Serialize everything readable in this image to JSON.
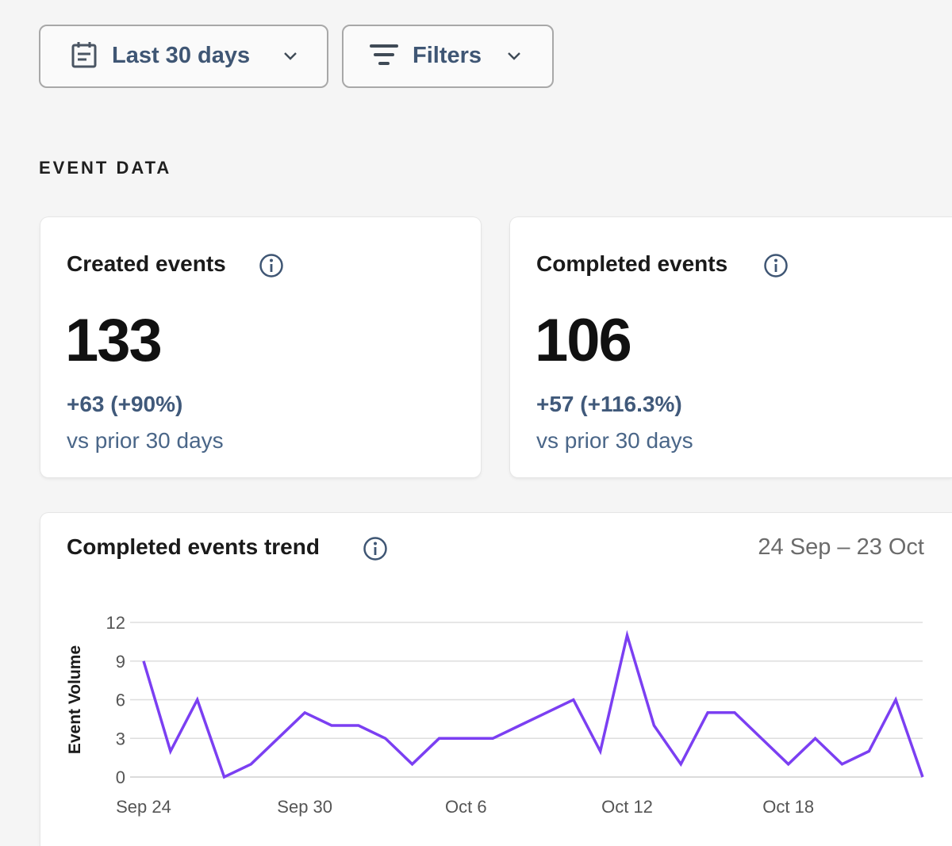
{
  "toolbar": {
    "date_label": "Last 30 days",
    "date_icon": "calendar-icon",
    "filters_label": "Filters",
    "filters_icon": "filter-icon"
  },
  "section": {
    "title": "EVENT DATA"
  },
  "cards": {
    "created": {
      "title": "Created events",
      "value": "133",
      "delta": "+63 (+90%)",
      "comparison": "vs prior 30 days"
    },
    "completed": {
      "title": "Completed events",
      "value": "106",
      "delta": "+57 (+116.3%)",
      "comparison": "vs prior 30 days"
    }
  },
  "trend": {
    "title": "Completed events trend",
    "date_range": "24 Sep – 23 Oct"
  },
  "colors": {
    "accent_line": "#7b3ff2",
    "delta_text": "#40597a",
    "button_text": "#3f5674"
  },
  "chart_data": {
    "type": "line",
    "title": "Completed events trend",
    "ylabel": "Event Volume",
    "xlabel": "",
    "ylim": [
      0,
      12
    ],
    "yticks": [
      0,
      3,
      6,
      9,
      12
    ],
    "xtick_labels": [
      "Sep 24",
      "Sep 30",
      "Oct 6",
      "Oct 12",
      "Oct 18"
    ],
    "xtick_indices": [
      0,
      6,
      12,
      18,
      24
    ],
    "grid": true,
    "x": [
      "Sep 24",
      "Sep 25",
      "Sep 26",
      "Sep 27",
      "Sep 28",
      "Sep 29",
      "Sep 30",
      "Oct 1",
      "Oct 2",
      "Oct 3",
      "Oct 4",
      "Oct 5",
      "Oct 6",
      "Oct 7",
      "Oct 8",
      "Oct 9",
      "Oct 10",
      "Oct 11",
      "Oct 12",
      "Oct 13",
      "Oct 14",
      "Oct 15",
      "Oct 16",
      "Oct 17",
      "Oct 18",
      "Oct 19",
      "Oct 20",
      "Oct 21",
      "Oct 22",
      "Oct 23"
    ],
    "series": [
      {
        "values": [
          9,
          2,
          6,
          0,
          1,
          3,
          5,
          4,
          4,
          3,
          1,
          3,
          3,
          3,
          4,
          5,
          6,
          2,
          11,
          4,
          1,
          5,
          5,
          3,
          1,
          3,
          1,
          2,
          6,
          0
        ]
      }
    ]
  }
}
